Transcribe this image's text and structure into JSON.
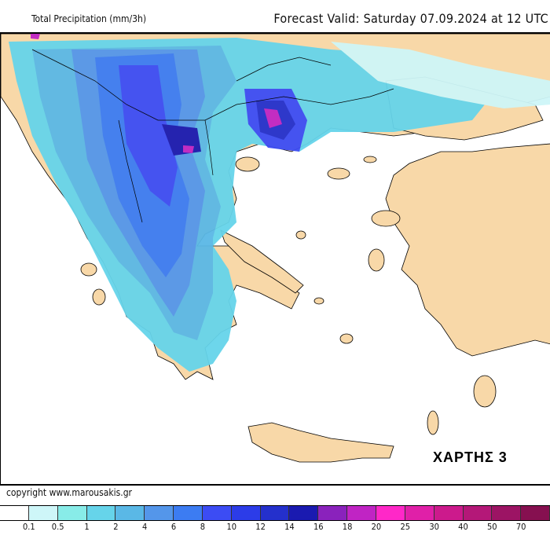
{
  "header": {
    "title": "Total Precipitation (mm/3h)",
    "valid": "Forecast Valid:  Saturday 07.09.2024 at 12 UTC"
  },
  "map": {
    "stamp": "ΧΑΡΤΗΣ 3",
    "land_color": "#f8d8a8",
    "sea_color": "#ffffff"
  },
  "copyright": "copyright  www.marousakis.gr",
  "legend": {
    "unit": "mm/3h",
    "colors": [
      "#ffffff",
      "#cef6f8",
      "#88ece8",
      "#66d4ea",
      "#5ab8e6",
      "#5496ea",
      "#3c7cf2",
      "#3c4cf4",
      "#2c3ce8",
      "#2430cc",
      "#1a1ab0",
      "#8a22bc",
      "#c024c4",
      "#ff28c8",
      "#e020a8",
      "#cc1a8c",
      "#b41878",
      "#9c1464",
      "#861050"
    ],
    "labels": [
      "0.1",
      "0.5",
      "1",
      "2",
      "4",
      "6",
      "8",
      "10",
      "12",
      "14",
      "16",
      "18",
      "20",
      "25",
      "30",
      "40",
      "50",
      "70"
    ]
  }
}
